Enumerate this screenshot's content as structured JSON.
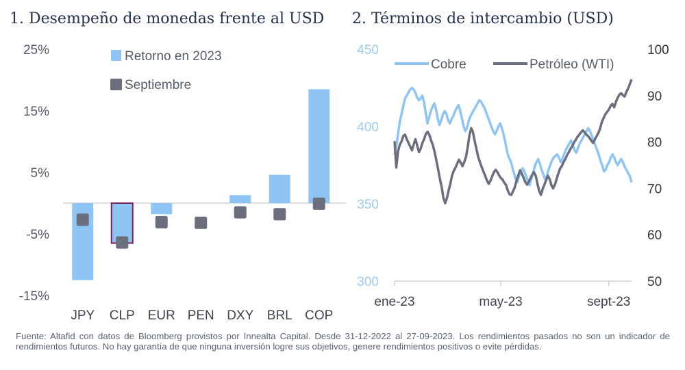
{
  "chart_data": [
    {
      "type": "bar",
      "title": "1. Desempeño de monedas frente al USD",
      "categories": [
        "JPY",
        "CLP",
        "EUR",
        "PEN",
        "DXY",
        "BRL",
        "COP"
      ],
      "series": [
        {
          "name": "Retorno en 2023",
          "type": "bar",
          "color": "#8ec5f5",
          "values": [
            -12.5,
            -6.5,
            -1.8,
            0.0,
            1.3,
            4.6,
            18.5
          ]
        },
        {
          "name": "Septiembre",
          "type": "marker",
          "color": "#6b6e7d",
          "values": [
            -2.7,
            -6.4,
            -3.1,
            -3.2,
            -1.5,
            -1.8,
            -0.1
          ]
        }
      ],
      "highlight": {
        "category": "CLP",
        "outline_color": "#7b1e5a"
      },
      "ylim": [
        -15,
        25
      ],
      "yticks": [
        25,
        15,
        5,
        -5,
        -15
      ],
      "ytick_labels": [
        "25%",
        "15%",
        "5%",
        "-5%",
        "-15%"
      ],
      "xlabel": "",
      "ylabel": "",
      "legend": "top-left"
    },
    {
      "type": "line",
      "title": "2. Términos de intercambio (USD)",
      "x_range": [
        "2022-12-31",
        "2023-09-27"
      ],
      "xtick_labels": [
        "ene-23",
        "may-23",
        "sept-23"
      ],
      "left_axis": {
        "ylim": [
          300,
          450
        ],
        "ticks": [
          "300",
          "350",
          "400",
          "450"
        ],
        "color": "#9ccbef"
      },
      "right_axis": {
        "ylim": [
          50,
          100
        ],
        "ticks": [
          "50",
          "60",
          "70",
          "80",
          "90",
          "100"
        ],
        "color": "#333333"
      },
      "series": [
        {
          "name": "Cobre",
          "axis": "left",
          "color": "#8ec5f5",
          "values": [
            382,
            387,
            395,
            403,
            408,
            413,
            418,
            420,
            422,
            424,
            425,
            424,
            422,
            419,
            417,
            418,
            420,
            416,
            409,
            402,
            406,
            410,
            413,
            415,
            411,
            405,
            401,
            404,
            408,
            410,
            408,
            404,
            402,
            405,
            407,
            410,
            412,
            414,
            410,
            405,
            400,
            397,
            400,
            404,
            407,
            409,
            411,
            413,
            415,
            417,
            416,
            414,
            412,
            409,
            406,
            403,
            400,
            397,
            395,
            397,
            400,
            402,
            399,
            395,
            390,
            384,
            380,
            378,
            374,
            370,
            366,
            364,
            368,
            371,
            373,
            371,
            368,
            365,
            362,
            366,
            370,
            374,
            377,
            379,
            376,
            372,
            369,
            366,
            368,
            372,
            375,
            378,
            380,
            381,
            382,
            380,
            377,
            379,
            382,
            385,
            387,
            389,
            391,
            388,
            385,
            383,
            386,
            389,
            391,
            393,
            395,
            397,
            399,
            397,
            394,
            391,
            388,
            385,
            382,
            378,
            375,
            371,
            372,
            375,
            377,
            380,
            382,
            380,
            377,
            375,
            377,
            379,
            377,
            374,
            372,
            370,
            368,
            364
          ]
        },
        {
          "name": "Petróleo (WTI)",
          "axis": "right",
          "color": "#6b6e7d",
          "values": [
            80.2,
            74.5,
            78.0,
            79.4,
            80.1,
            81.3,
            81.6,
            80.6,
            79.8,
            79.0,
            78.2,
            79.5,
            80.6,
            79.2,
            77.8,
            78.6,
            79.8,
            80.7,
            81.8,
            82.2,
            81.5,
            80.3,
            79.3,
            77.8,
            76.0,
            74.1,
            72.1,
            70.4,
            68.0,
            66.8,
            67.8,
            69.5,
            71.0,
            72.8,
            73.8,
            74.5,
            75.4,
            76.2,
            75.5,
            74.8,
            75.7,
            76.8,
            79.0,
            81.5,
            83.0,
            82.1,
            80.2,
            78.4,
            76.8,
            75.6,
            74.6,
            73.6,
            72.7,
            71.7,
            71.0,
            71.6,
            72.6,
            73.5,
            74.0,
            73.5,
            72.8,
            72.2,
            71.9,
            71.2,
            70.7,
            69.5,
            68.7,
            68.6,
            69.4,
            70.2,
            71.7,
            72.8,
            73.9,
            73.2,
            72.3,
            71.4,
            70.8,
            71.4,
            72.2,
            72.9,
            73.5,
            72.7,
            71.0,
            69.4,
            68.6,
            69.9,
            70.8,
            71.8,
            72.7,
            72.0,
            70.7,
            70.0,
            70.8,
            72.0,
            73.2,
            74.3,
            74.8,
            75.7,
            76.3,
            77.2,
            77.8,
            78.6,
            79.1,
            79.9,
            80.5,
            81.1,
            81.6,
            82.1,
            82.5,
            82.1,
            81.6,
            81.3,
            80.8,
            80.2,
            79.8,
            80.6,
            81.3,
            82.0,
            83.0,
            84.4,
            85.2,
            86.0,
            86.5,
            87.0,
            87.8,
            88.2,
            87.5,
            88.6,
            89.5,
            90.2,
            90.5,
            90.1,
            89.8,
            90.8,
            91.5,
            92.5,
            93.5
          ]
        }
      ],
      "legend": "top"
    }
  ],
  "footnote": "Fuente: Altafid con datos de Bloomberg provistos por Innealta Capital. Desde 31-12-2022 al 27-09-2023. Los rendimientos pasados no son un indicador de rendimientos futuros. No hay garantía de que ninguna inversión logre sus objetivos, genere rendimientos positivos o evite pérdidas."
}
